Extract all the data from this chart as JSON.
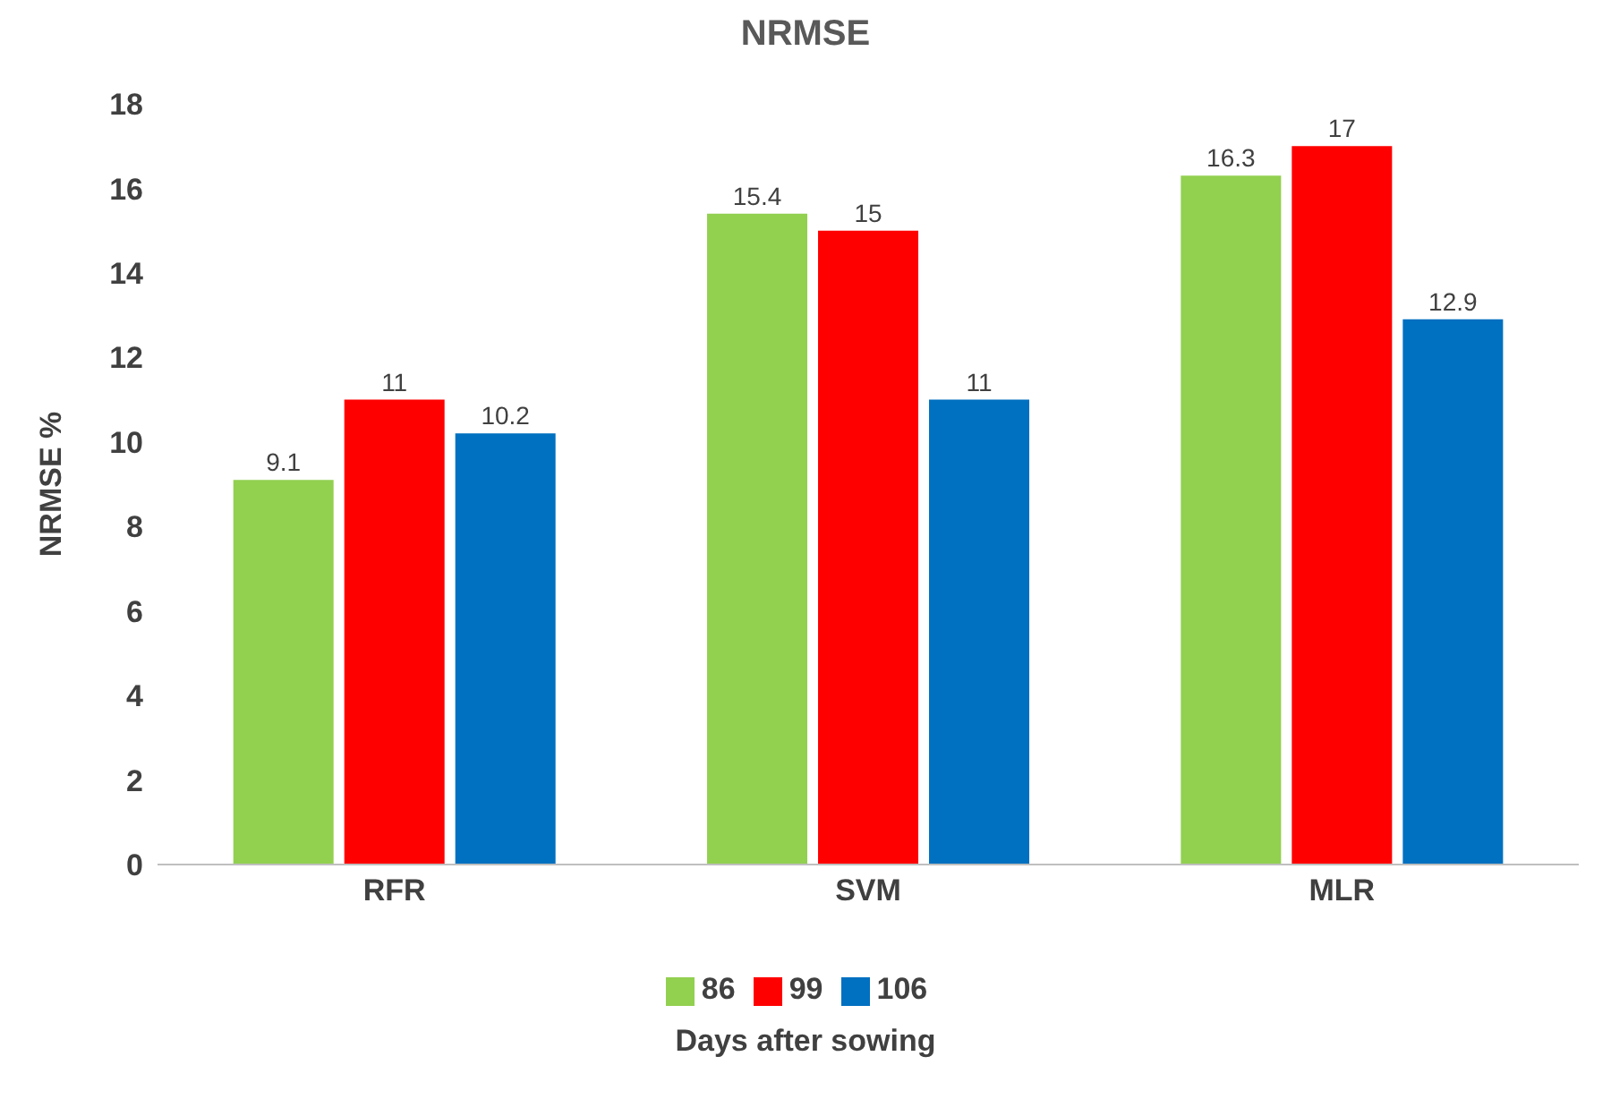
{
  "chart_data": {
    "type": "bar",
    "title": "NRMSE",
    "xlabel": "Days after sowing",
    "ylabel": "NRMSE %",
    "categories": [
      "RFR",
      "SVM",
      "MLR"
    ],
    "series": [
      {
        "name": "86",
        "color": "#92d050",
        "values": [
          9.1,
          15.4,
          16.3
        ]
      },
      {
        "name": "99",
        "color": "#ff0000",
        "values": [
          11,
          15,
          17
        ]
      },
      {
        "name": "106",
        "color": "#0070c0",
        "values": [
          10.2,
          11,
          12.9
        ]
      }
    ],
    "ylim": [
      0,
      18
    ],
    "yticks": [
      0,
      2,
      4,
      6,
      8,
      10,
      12,
      14,
      16,
      18
    ],
    "data_labels": true,
    "legend": "bottom"
  }
}
